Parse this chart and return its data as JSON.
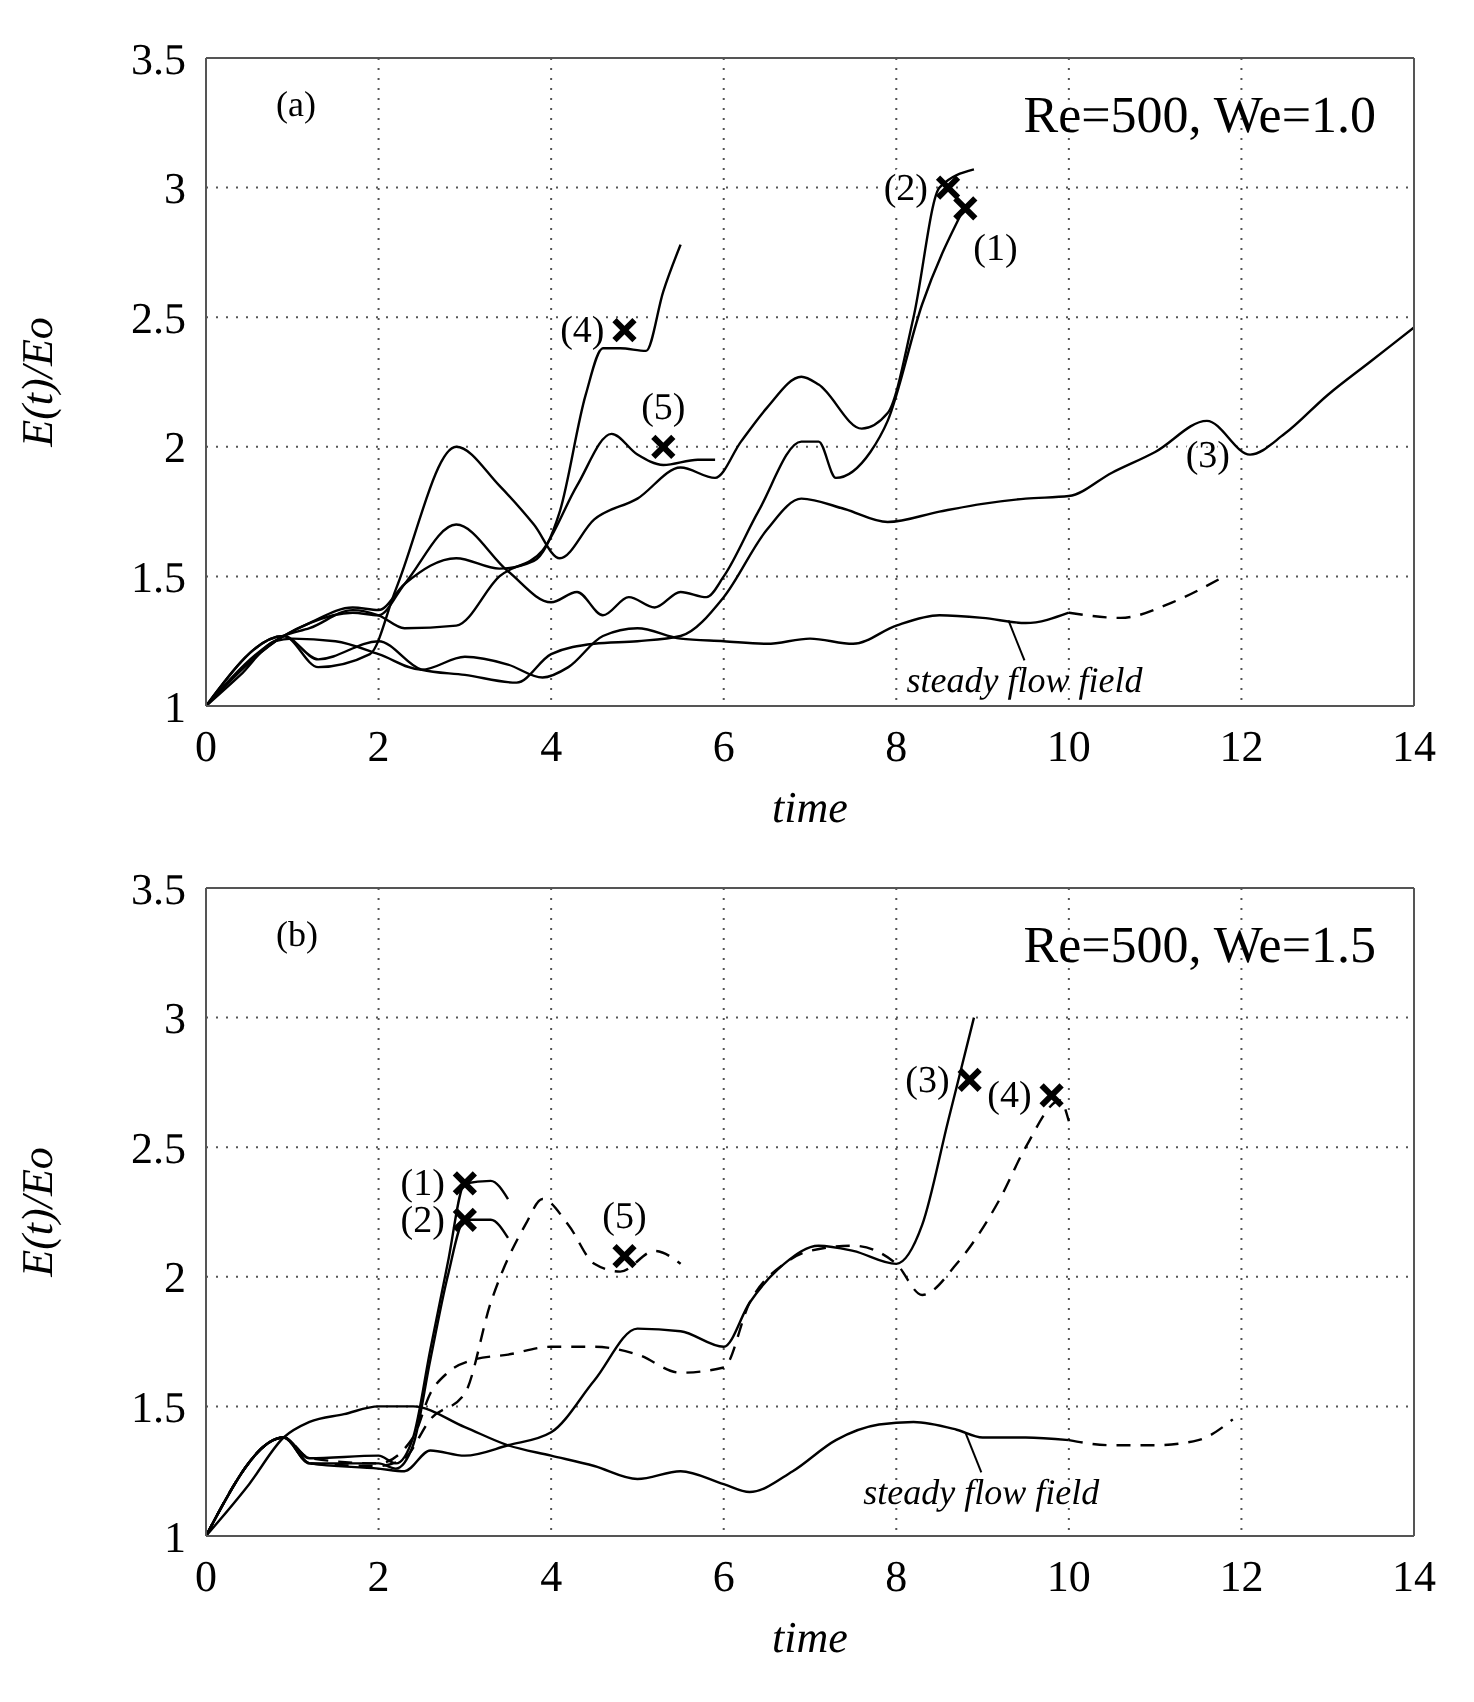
{
  "chart_data": [
    {
      "type": "line",
      "xlabel": "time",
      "ylabel": "E(t)/Eo",
      "xlim": [
        0,
        14
      ],
      "ylim": [
        1,
        3.5
      ],
      "xticks": [
        0,
        2,
        4,
        6,
        8,
        10,
        12,
        14
      ],
      "yticks": [
        1,
        1.5,
        2,
        2.5,
        3,
        3.5
      ],
      "grid": true,
      "marker": "none",
      "annotations": [
        "(a)",
        "Re=500, We=1.0",
        {
          "text": "(1)",
          "x": 8.8,
          "y": 2.92
        },
        {
          "text": "(2)",
          "x": 8.6,
          "y": 3.0
        },
        {
          "text": "(3)",
          "x": 12.1,
          "y": 1.97
        },
        {
          "text": "(4)",
          "x": 4.85,
          "y": 2.45
        },
        {
          "text": "(5)",
          "x": 5.3,
          "y": 2.0
        },
        {
          "text": "steady flow field",
          "x": 9.3,
          "y": 1.33
        }
      ],
      "series": [
        {
          "color": "#000000",
          "line_style": "solid",
          "x": [
            0,
            0.4,
            0.8,
            1,
            1.5,
            2,
            2.5,
            3,
            3.5,
            3.9,
            4.2,
            4.6,
            5,
            5.5,
            6,
            6.5,
            7,
            7.5,
            8,
            8.5,
            9,
            9.5,
            10
          ],
          "values": [
            1,
            1.12,
            1.25,
            1.26,
            1.25,
            1.2,
            1.14,
            1.19,
            1.16,
            1.11,
            1.15,
            1.27,
            1.3,
            1.26,
            1.25,
            1.24,
            1.26,
            1.24,
            1.31,
            1.35,
            1.34,
            1.32,
            1.36
          ]
        },
        {
          "color": "#000000",
          "line_style": "dashed",
          "x": [
            10,
            10.6,
            11.2,
            11.8
          ],
          "values": [
            1.36,
            1.34,
            1.4,
            1.5
          ]
        },
        {
          "color": "#000000",
          "line_style": "solid",
          "x": [
            0,
            0.9,
            1.2,
            1.7,
            2,
            2.3,
            2.9,
            3.5,
            4,
            4.3,
            4.6,
            4.9,
            5.2,
            5.5,
            5.8,
            6,
            6.4,
            6.9,
            7.1,
            7.3,
            7.7,
            7.9,
            8.3,
            8.8
          ],
          "values": [
            1,
            1.27,
            1.32,
            1.36,
            1.35,
            1.47,
            1.7,
            1.52,
            1.4,
            1.44,
            1.35,
            1.42,
            1.38,
            1.44,
            1.42,
            1.5,
            1.75,
            2.02,
            2.02,
            1.88,
            1.98,
            2.1,
            2.55,
            2.93
          ]
        },
        {
          "color": "#000000",
          "line_style": "solid",
          "x": [
            0,
            0.9,
            1.3,
            1.9,
            2.2,
            2.9,
            3.4,
            3.8,
            4.1,
            4.5,
            5,
            5.5,
            5.9,
            6.2,
            6.5,
            6.9,
            7.1,
            7.6,
            7.9,
            8.2,
            8.5,
            8.9
          ],
          "values": [
            1,
            1.27,
            1.15,
            1.2,
            1.45,
            2.0,
            1.85,
            1.7,
            1.57,
            1.72,
            1.8,
            1.92,
            1.88,
            2.02,
            2.15,
            2.27,
            2.24,
            2.07,
            2.13,
            2.5,
            3.0,
            3.07
          ]
        },
        {
          "color": "#000000",
          "line_style": "solid",
          "x": [
            0,
            0.9,
            1.3,
            2,
            2.5,
            3,
            3.6,
            4,
            4.5,
            5,
            5.5,
            6,
            6.5,
            6.9,
            7.4,
            7.9,
            8.5,
            9,
            9.5,
            10,
            10.5,
            11,
            11.6,
            12.1,
            12.5,
            13,
            13.5,
            14
          ],
          "values": [
            1,
            1.27,
            1.18,
            1.25,
            1.14,
            1.12,
            1.09,
            1.2,
            1.24,
            1.25,
            1.27,
            1.42,
            1.68,
            1.8,
            1.76,
            1.71,
            1.75,
            1.78,
            1.8,
            1.81,
            1.9,
            1.98,
            2.1,
            1.97,
            2.05,
            2.2,
            2.33,
            2.46
          ]
        },
        {
          "color": "#000000",
          "line_style": "solid",
          "x": [
            0,
            0.9,
            1.2,
            1.7,
            2,
            2.3,
            2.9,
            3.4,
            3.8,
            4.1,
            4.4,
            4.6,
            4.8,
            5.1,
            5.3,
            5.5
          ],
          "values": [
            1,
            1.27,
            1.32,
            1.38,
            1.37,
            1.47,
            1.57,
            1.53,
            1.56,
            1.75,
            2.2,
            2.38,
            2.38,
            2.37,
            2.6,
            2.78
          ]
        },
        {
          "color": "#000000",
          "line_style": "solid",
          "x": [
            0,
            0.9,
            1.2,
            1.7,
            2,
            2.3,
            2.9,
            3.4,
            3.9,
            4.3,
            4.7,
            5,
            5.3,
            5.7,
            5.9
          ],
          "values": [
            1,
            1.27,
            1.3,
            1.37,
            1.35,
            1.3,
            1.31,
            1.5,
            1.6,
            1.85,
            2.05,
            1.97,
            1.93,
            1.95,
            1.95
          ]
        },
        {
          "type": "scatter",
          "color": "#000000",
          "marker": "cross",
          "x": [
            8.8,
            8.6,
            4.85,
            5.3
          ],
          "values": [
            2.92,
            3.0,
            2.45,
            2.0
          ]
        }
      ]
    },
    {
      "type": "line",
      "xlabel": "time",
      "ylabel": "E(t)/Eo",
      "xlim": [
        0,
        14
      ],
      "ylim": [
        1,
        3.5
      ],
      "xticks": [
        0,
        2,
        4,
        6,
        8,
        10,
        12,
        14
      ],
      "yticks": [
        1,
        1.5,
        2,
        2.5,
        3,
        3.5
      ],
      "grid": true,
      "marker": "none",
      "annotations": [
        "(b)",
        "Re=500, We=1.5",
        {
          "text": "(1)",
          "x": 3.0,
          "y": 2.36
        },
        {
          "text": "(2)",
          "x": 3.0,
          "y": 2.22
        },
        {
          "text": "(3)",
          "x": 8.85,
          "y": 2.76
        },
        {
          "text": "(4)",
          "x": 9.8,
          "y": 2.7
        },
        {
          "text": "(5)",
          "x": 4.85,
          "y": 2.08
        },
        {
          "text": "steady flow field",
          "x": 8.8,
          "y": 1.4
        }
      ],
      "series": [
        {
          "color": "#000000",
          "line_style": "solid",
          "x": [
            0,
            0.5,
            0.9,
            1.2,
            1.6,
            2,
            2.4,
            3,
            3.5,
            4,
            4.5,
            5,
            5.5,
            6,
            6.3,
            6.8,
            7.3,
            7.8,
            8.2,
            8.7,
            9,
            9.5,
            10
          ],
          "values": [
            1,
            1.2,
            1.38,
            1.44,
            1.47,
            1.5,
            1.5,
            1.42,
            1.35,
            1.31,
            1.27,
            1.22,
            1.25,
            1.2,
            1.17,
            1.25,
            1.37,
            1.43,
            1.44,
            1.41,
            1.38,
            1.38,
            1.37
          ]
        },
        {
          "color": "#000000",
          "line_style": "dashed",
          "x": [
            10,
            10.5,
            11,
            11.5,
            11.9
          ],
          "values": [
            1.37,
            1.35,
            1.35,
            1.37,
            1.45
          ]
        },
        {
          "color": "#000000",
          "line_style": "solid",
          "x": [
            0,
            0.9,
            1.2,
            2,
            2.2,
            2.4,
            2.6,
            2.8,
            3,
            3.3,
            3.5
          ],
          "values": [
            1,
            1.38,
            1.3,
            1.31,
            1.28,
            1.38,
            1.72,
            2.05,
            2.36,
            2.37,
            2.3
          ]
        },
        {
          "color": "#000000",
          "line_style": "solid",
          "x": [
            0,
            0.9,
            1.2,
            2,
            2.2,
            2.4,
            2.6,
            2.8,
            3,
            3.3,
            3.5
          ],
          "values": [
            1,
            1.38,
            1.28,
            1.28,
            1.26,
            1.35,
            1.68,
            2.0,
            2.22,
            2.22,
            2.15
          ]
        },
        {
          "color": "#000000",
          "line_style": "solid",
          "x": [
            0,
            0.9,
            1.2,
            2,
            2.3,
            2.6,
            3,
            3.5,
            4,
            4.5,
            5,
            5.5,
            6,
            6.3,
            6.7,
            7.1,
            7.5,
            8,
            8.3,
            8.6,
            8.9
          ],
          "values": [
            1,
            1.38,
            1.28,
            1.26,
            1.25,
            1.33,
            1.31,
            1.35,
            1.4,
            1.6,
            1.8,
            1.79,
            1.73,
            1.9,
            2.05,
            2.12,
            2.1,
            2.05,
            2.2,
            2.6,
            3.0
          ]
        },
        {
          "color": "#000000",
          "line_style": "dashed",
          "x": [
            0,
            0.9,
            1.2,
            2,
            2.4,
            2.6,
            2.8,
            3.1,
            3.5,
            4,
            4.5,
            5,
            5.5,
            6,
            6.3,
            6.7,
            7,
            7.5,
            8,
            8.3,
            8.7,
            9.2,
            9.5,
            9.9,
            10
          ],
          "values": [
            1,
            1.38,
            1.3,
            1.28,
            1.38,
            1.55,
            1.63,
            1.68,
            1.7,
            1.73,
            1.73,
            1.7,
            1.63,
            1.65,
            1.9,
            2.05,
            2.1,
            2.12,
            2.05,
            1.93,
            2.05,
            2.3,
            2.5,
            2.68,
            2.6
          ]
        },
        {
          "color": "#000000",
          "line_style": "dashed",
          "x": [
            0,
            0.9,
            1.2,
            2,
            2.3,
            2.6,
            3,
            3.3,
            3.7,
            3.9,
            4.2,
            4.5,
            4.8,
            5.2,
            5.5
          ],
          "values": [
            1,
            1.38,
            1.28,
            1.27,
            1.3,
            1.45,
            1.55,
            1.9,
            2.2,
            2.3,
            2.2,
            2.05,
            2.02,
            2.1,
            2.05
          ]
        },
        {
          "type": "scatter",
          "color": "#000000",
          "marker": "cross",
          "x": [
            3.0,
            3.0,
            8.85,
            9.8,
            4.85
          ],
          "values": [
            2.36,
            2.22,
            2.76,
            2.7,
            2.08
          ]
        }
      ]
    }
  ]
}
